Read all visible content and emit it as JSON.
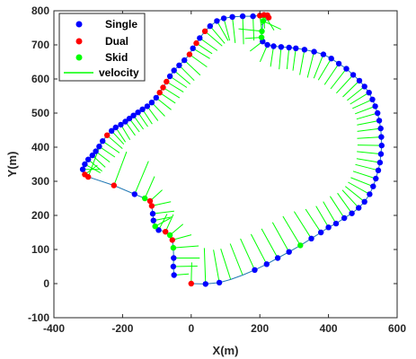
{
  "chart_data": {
    "type": "scatter",
    "xlabel": "X(m)",
    "ylabel": "Y(m)",
    "xlim": [
      -400,
      600
    ],
    "ylim": [
      -100,
      800
    ],
    "xticks": [
      "-400",
      "-200",
      "0",
      "200",
      "400",
      "600"
    ],
    "yticks": [
      "-100",
      "0",
      "100",
      "200",
      "300",
      "400",
      "500",
      "600",
      "700",
      "800"
    ],
    "grid": false,
    "legend": {
      "position": "top-left",
      "entries": [
        {
          "label": "Single",
          "kind": "marker",
          "color": "#0000ff"
        },
        {
          "label": "Dual",
          "kind": "marker",
          "color": "#ff0000"
        },
        {
          "label": "Skid",
          "kind": "marker",
          "color": "#00ff00"
        },
        {
          "label": "velocity",
          "kind": "line",
          "color": "#00ff00"
        }
      ]
    },
    "colors": {
      "path": "#1f77b4",
      "single": "#0000ff",
      "dual": "#ff0000",
      "skid": "#00ff00",
      "velocity": "#00ff00",
      "axis": "#262626"
    },
    "path": [
      [
        -50,
        25
      ],
      [
        -52,
        50
      ],
      [
        -51,
        75
      ],
      [
        -52,
        105
      ],
      [
        -55,
        128
      ],
      [
        -62,
        142
      ],
      [
        -75,
        152
      ],
      [
        -95,
        157
      ],
      [
        -105,
        168
      ],
      [
        -110,
        185
      ],
      [
        -112,
        205
      ],
      [
        -115,
        228
      ],
      [
        -120,
        242
      ],
      [
        -135,
        250
      ],
      [
        -165,
        262
      ],
      [
        -225,
        288
      ],
      [
        -300,
        313
      ],
      [
        -310,
        320
      ],
      [
        -316,
        335
      ],
      [
        -310,
        350
      ],
      [
        -300,
        364
      ],
      [
        -288,
        376
      ],
      [
        -278,
        388
      ],
      [
        -268,
        402
      ],
      [
        -258,
        418
      ],
      [
        -245,
        435
      ],
      [
        -232,
        448
      ],
      [
        -220,
        458
      ],
      [
        -205,
        466
      ],
      [
        -192,
        475
      ],
      [
        -180,
        484
      ],
      [
        -168,
        493
      ],
      [
        -155,
        502
      ],
      [
        -142,
        511
      ],
      [
        -128,
        520
      ],
      [
        -115,
        531
      ],
      [
        -102,
        545
      ],
      [
        -92,
        560
      ],
      [
        -82,
        575
      ],
      [
        -72,
        592
      ],
      [
        -62,
        608
      ],
      [
        -50,
        625
      ],
      [
        -35,
        640
      ],
      [
        -20,
        655
      ],
      [
        -5,
        672
      ],
      [
        5,
        690
      ],
      [
        15,
        705
      ],
      [
        25,
        720
      ],
      [
        40,
        740
      ],
      [
        55,
        755
      ],
      [
        75,
        770
      ],
      [
        95,
        778
      ],
      [
        120,
        782
      ],
      [
        150,
        784
      ],
      [
        180,
        784
      ],
      [
        200,
        786
      ],
      [
        212,
        788
      ],
      [
        222,
        787
      ],
      [
        226,
        780
      ],
      [
        222,
        774
      ],
      [
        210,
        770
      ],
      [
        206,
        740
      ],
      [
        205,
        722
      ],
      [
        208,
        710
      ],
      [
        222,
        700
      ],
      [
        240,
        696
      ],
      [
        262,
        694
      ],
      [
        285,
        692
      ],
      [
        305,
        690
      ],
      [
        330,
        686
      ],
      [
        358,
        680
      ],
      [
        385,
        672
      ],
      [
        408,
        660
      ],
      [
        430,
        645
      ],
      [
        452,
        630
      ],
      [
        472,
        612
      ],
      [
        490,
        595
      ],
      [
        505,
        578
      ],
      [
        518,
        560
      ],
      [
        528,
        540
      ],
      [
        536,
        520
      ],
      [
        543,
        500
      ],
      [
        548,
        478
      ],
      [
        552,
        455
      ],
      [
        554,
        430
      ],
      [
        555,
        405
      ],
      [
        553,
        380
      ],
      [
        550,
        355
      ],
      [
        545,
        332
      ],
      [
        538,
        308
      ],
      [
        530,
        285
      ],
      [
        520,
        262
      ],
      [
        505,
        240
      ],
      [
        488,
        222
      ],
      [
        468,
        206
      ],
      [
        446,
        192
      ],
      [
        422,
        176
      ],
      [
        400,
        165
      ],
      [
        378,
        150
      ],
      [
        350,
        132
      ],
      [
        318,
        112
      ],
      [
        285,
        93
      ],
      [
        252,
        75
      ],
      [
        220,
        57
      ],
      [
        185,
        40
      ],
      [
        150,
        25
      ],
      [
        115,
        12
      ],
      [
        82,
        3
      ],
      [
        42,
        -1
      ],
      [
        0,
        0
      ]
    ],
    "series": [
      {
        "name": "Single",
        "color": "#0000ff",
        "points": [
          [
            -50,
            25
          ],
          [
            -52,
            50
          ],
          [
            -51,
            75
          ],
          [
            -95,
            157
          ],
          [
            -110,
            185
          ],
          [
            -112,
            205
          ],
          [
            -165,
            262
          ],
          [
            -316,
            335
          ],
          [
            -310,
            350
          ],
          [
            -300,
            364
          ],
          [
            -288,
            376
          ],
          [
            -278,
            388
          ],
          [
            -268,
            402
          ],
          [
            -258,
            418
          ],
          [
            -232,
            448
          ],
          [
            -220,
            458
          ],
          [
            -205,
            466
          ],
          [
            -192,
            475
          ],
          [
            -180,
            484
          ],
          [
            -168,
            493
          ],
          [
            -155,
            502
          ],
          [
            -142,
            511
          ],
          [
            -128,
            520
          ],
          [
            -115,
            531
          ],
          [
            -102,
            545
          ],
          [
            -62,
            608
          ],
          [
            -50,
            625
          ],
          [
            -35,
            640
          ],
          [
            -20,
            655
          ],
          [
            5,
            690
          ],
          [
            25,
            720
          ],
          [
            55,
            755
          ],
          [
            75,
            770
          ],
          [
            95,
            778
          ],
          [
            120,
            782
          ],
          [
            150,
            784
          ],
          [
            180,
            784
          ],
          [
            208,
            710
          ],
          [
            222,
            700
          ],
          [
            240,
            696
          ],
          [
            262,
            694
          ],
          [
            285,
            692
          ],
          [
            305,
            690
          ],
          [
            330,
            686
          ],
          [
            358,
            680
          ],
          [
            385,
            672
          ],
          [
            408,
            660
          ],
          [
            430,
            645
          ],
          [
            452,
            630
          ],
          [
            472,
            612
          ],
          [
            490,
            595
          ],
          [
            505,
            578
          ],
          [
            518,
            560
          ],
          [
            528,
            540
          ],
          [
            536,
            520
          ],
          [
            543,
            500
          ],
          [
            548,
            478
          ],
          [
            552,
            455
          ],
          [
            554,
            430
          ],
          [
            555,
            405
          ],
          [
            553,
            380
          ],
          [
            550,
            355
          ],
          [
            545,
            332
          ],
          [
            538,
            308
          ],
          [
            530,
            285
          ],
          [
            520,
            262
          ],
          [
            505,
            240
          ],
          [
            488,
            222
          ],
          [
            468,
            206
          ],
          [
            446,
            192
          ],
          [
            422,
            176
          ],
          [
            400,
            165
          ],
          [
            378,
            150
          ],
          [
            350,
            132
          ],
          [
            285,
            93
          ],
          [
            252,
            75
          ],
          [
            220,
            57
          ],
          [
            185,
            40
          ],
          [
            82,
            3
          ],
          [
            42,
            -1
          ]
        ]
      },
      {
        "name": "Dual",
        "color": "#ff0000",
        "points": [
          [
            -55,
            128
          ],
          [
            -75,
            152
          ],
          [
            -115,
            228
          ],
          [
            -120,
            242
          ],
          [
            -225,
            288
          ],
          [
            -300,
            313
          ],
          [
            -310,
            320
          ],
          [
            -245,
            435
          ],
          [
            -92,
            560
          ],
          [
            -82,
            575
          ],
          [
            -72,
            592
          ],
          [
            -5,
            672
          ],
          [
            15,
            705
          ],
          [
            40,
            740
          ],
          [
            200,
            786
          ],
          [
            212,
            788
          ],
          [
            222,
            787
          ],
          [
            226,
            780
          ],
          [
            0,
            0
          ]
        ]
      },
      {
        "name": "Skid",
        "color": "#00ff00",
        "points": [
          [
            -52,
            105
          ],
          [
            -62,
            142
          ],
          [
            -105,
            168
          ],
          [
            -135,
            250
          ],
          [
            210,
            770
          ],
          [
            206,
            740
          ],
          [
            205,
            722
          ],
          [
            318,
            112
          ]
        ]
      }
    ]
  }
}
